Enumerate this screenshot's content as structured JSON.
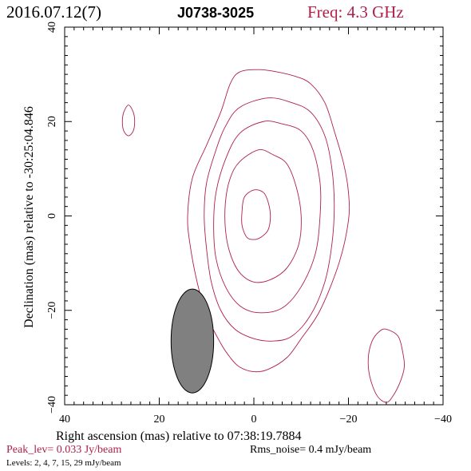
{
  "header": {
    "date": "2016.07.12(7)",
    "source": "J0738-3025",
    "freq": "Freq: 4.3 GHz"
  },
  "chart_data": {
    "type": "contour",
    "xlabel": "Right ascension (mas) relative to 07:38:19.7884",
    "ylabel": "Declination (mas) relative to -30:25:04.846",
    "xlim": [
      40,
      -40
    ],
    "ylim": [
      -40,
      40
    ],
    "x_ticks": [
      40,
      20,
      0,
      -20,
      -40
    ],
    "y_ticks": [
      -40,
      -20,
      0,
      20,
      40
    ],
    "x_tick_labels": [
      "40",
      "20",
      "0",
      "−20",
      "−40"
    ],
    "y_tick_labels": [
      "−40",
      "−20",
      "0",
      "20",
      "40"
    ],
    "contour_color": "#b0204a",
    "contours": [
      {
        "level": 2,
        "points": [
          [
            -1,
            31
          ],
          [
            -5,
            30.5
          ],
          [
            -9,
            29.5
          ],
          [
            -12,
            28
          ],
          [
            -15,
            24
          ],
          [
            -17,
            18
          ],
          [
            -19,
            11
          ],
          [
            -20,
            5
          ],
          [
            -20,
            -1
          ],
          [
            -18,
            -10
          ],
          [
            -14,
            -20
          ],
          [
            -10,
            -26
          ],
          [
            -7,
            -30
          ],
          [
            -3,
            -32.5
          ],
          [
            0,
            -33
          ],
          [
            3,
            -32
          ],
          [
            5,
            -30
          ],
          [
            7,
            -27
          ],
          [
            10,
            -21
          ],
          [
            12,
            -14
          ],
          [
            13.5,
            -6
          ],
          [
            14,
            0
          ],
          [
            13,
            8
          ],
          [
            10,
            15
          ],
          [
            7,
            22
          ],
          [
            5,
            28
          ],
          [
            3,
            30.5
          ]
        ]
      },
      {
        "level": 4,
        "points": [
          [
            -3,
            25
          ],
          [
            -8,
            24
          ],
          [
            -12,
            22
          ],
          [
            -15,
            17
          ],
          [
            -16.5,
            10
          ],
          [
            -17,
            2
          ],
          [
            -16.5,
            -6
          ],
          [
            -15,
            -14
          ],
          [
            -12,
            -21
          ],
          [
            -8,
            -25.5
          ],
          [
            -4,
            -26.5
          ],
          [
            0,
            -26
          ],
          [
            4,
            -24
          ],
          [
            7,
            -20
          ],
          [
            9,
            -14
          ],
          [
            10,
            -7
          ],
          [
            10.5,
            0
          ],
          [
            10,
            7
          ],
          [
            8,
            14
          ],
          [
            6,
            19
          ],
          [
            3,
            23
          ]
        ]
      },
      {
        "level": 7,
        "points": [
          [
            -2,
            20
          ],
          [
            -6,
            19.5
          ],
          [
            -10,
            18
          ],
          [
            -12.5,
            14
          ],
          [
            -14,
            7
          ],
          [
            -14,
            0
          ],
          [
            -13,
            -8
          ],
          [
            -10,
            -15
          ],
          [
            -6,
            -19.5
          ],
          [
            -1,
            -20.5
          ],
          [
            3,
            -19
          ],
          [
            6,
            -15
          ],
          [
            8,
            -9
          ],
          [
            8.5,
            -2
          ],
          [
            8,
            5
          ],
          [
            6,
            12
          ],
          [
            3,
            17.5
          ]
        ]
      },
      {
        "level": 15,
        "points": [
          [
            -1,
            14
          ],
          [
            -4,
            13
          ],
          [
            -7,
            11
          ],
          [
            -9,
            6
          ],
          [
            -10,
            0
          ],
          [
            -9.5,
            -6
          ],
          [
            -7,
            -11
          ],
          [
            -3.5,
            -13.5
          ],
          [
            0,
            -14
          ],
          [
            3,
            -12
          ],
          [
            5,
            -8
          ],
          [
            6,
            -3
          ],
          [
            6,
            3
          ],
          [
            5,
            8
          ],
          [
            3,
            11.5
          ]
        ]
      },
      {
        "level": 29,
        "points": [
          [
            0,
            5.5
          ],
          [
            -2,
            5
          ],
          [
            -3,
            3
          ],
          [
            -3.5,
            0
          ],
          [
            -3,
            -3
          ],
          [
            -1.5,
            -4.5
          ],
          [
            0,
            -5
          ],
          [
            1.5,
            -4.5
          ],
          [
            2.5,
            -2
          ],
          [
            2.5,
            1
          ],
          [
            2,
            4
          ]
        ]
      },
      {
        "level": 2,
        "points": [
          [
            26.5,
            23.5
          ],
          [
            25.5,
            22
          ],
          [
            25.2,
            20
          ],
          [
            25.5,
            18
          ],
          [
            26.5,
            17
          ],
          [
            27.5,
            18
          ],
          [
            27.8,
            20
          ],
          [
            27.5,
            22
          ]
        ]
      },
      {
        "level": 2,
        "points": [
          [
            -28,
            -24
          ],
          [
            -30.5,
            -25.5
          ],
          [
            -31.5,
            -29
          ],
          [
            -31.8,
            -32
          ],
          [
            -31,
            -35
          ],
          [
            -29.5,
            -38
          ],
          [
            -28,
            -39.5
          ],
          [
            -26,
            -38
          ],
          [
            -24.5,
            -34
          ],
          [
            -24.2,
            -30
          ],
          [
            -25,
            -26.5
          ],
          [
            -26.5,
            -24.5
          ]
        ]
      }
    ],
    "beam": {
      "x": 13,
      "y": -26.5,
      "semi_major": 11,
      "semi_minor": 4.5,
      "pa_deg": 0,
      "fill": "#808080"
    },
    "footer": {
      "peak": "Peak_lev=  0.033 Jy/beam",
      "rms": "Rms_noise=  0.4 mJy/beam",
      "levels": "Levels:   2,    4,    7,   15,   29 mJy/beam"
    }
  }
}
